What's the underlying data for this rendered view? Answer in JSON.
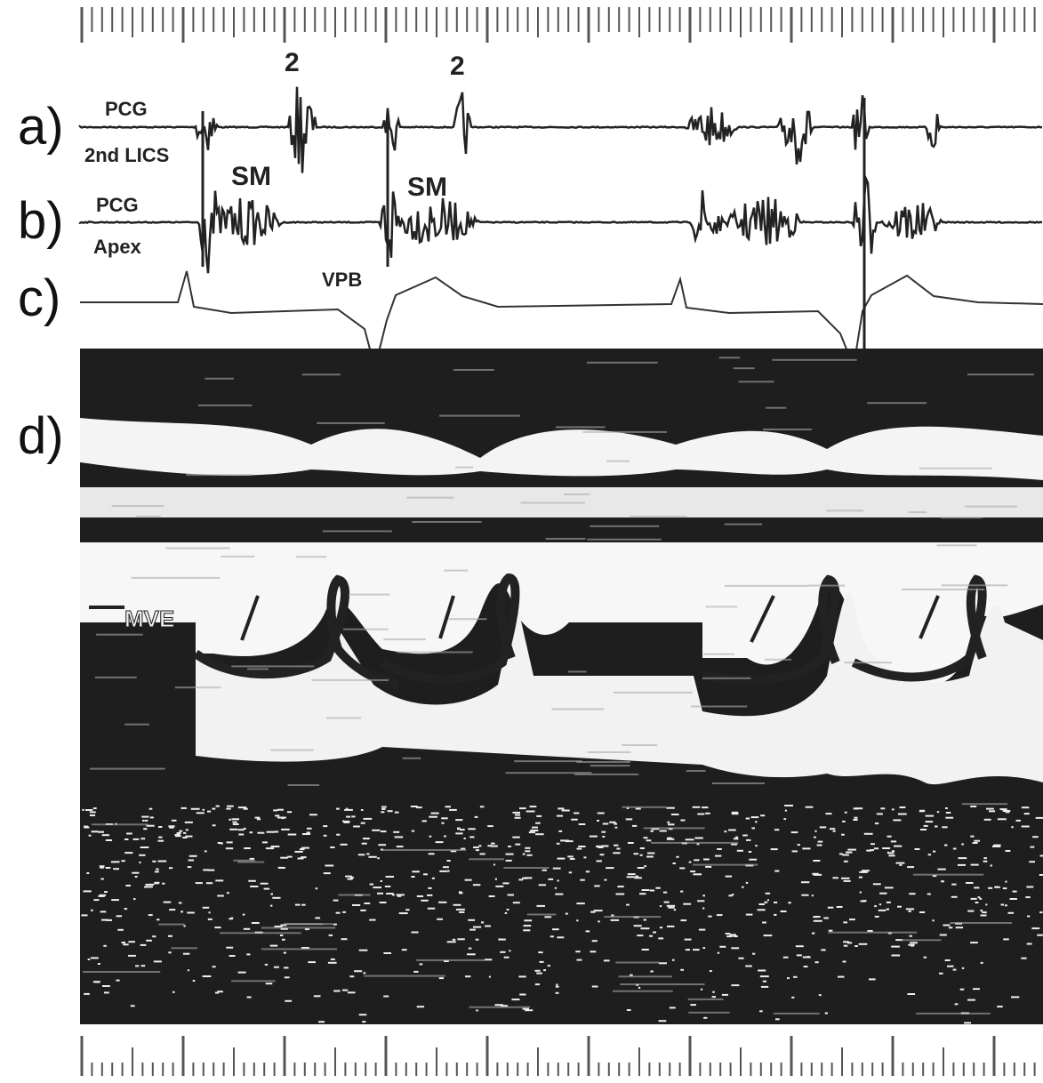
{
  "panel_labels": [
    "a)",
    "b)",
    "c)",
    "d)"
  ],
  "traces": [
    {
      "label": "PCG",
      "sublabel": "2nd LICS"
    },
    {
      "label": "PCG",
      "sublabel": "Apex"
    }
  ],
  "annotations": {
    "second_sound": [
      "2",
      "2"
    ],
    "systolic_murmur": [
      "SM",
      "SM"
    ],
    "ventricular_premature_beat": "VPB",
    "mitral_valve_echo": "MVE"
  }
}
